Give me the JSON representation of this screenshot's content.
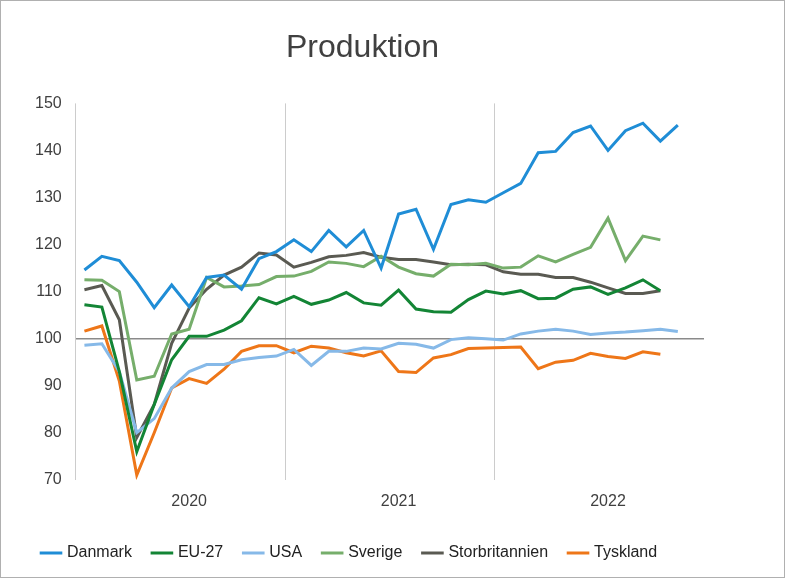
{
  "chart_data": {
    "type": "line",
    "title": "Produktion",
    "categories": [
      null,
      null,
      null,
      null,
      null,
      null,
      "2020",
      null,
      null,
      null,
      null,
      null,
      null,
      null,
      null,
      null,
      null,
      null,
      "2021",
      null,
      null,
      null,
      null,
      null,
      null,
      null,
      null,
      null,
      null,
      null,
      "2022",
      null,
      null,
      null,
      null,
      null
    ],
    "series": [
      {
        "name": "Danmark",
        "color": "#1f8dd6",
        "values": [
          114.6,
          117.5,
          116.6,
          112,
          106.6,
          111.4,
          106.8,
          113,
          113.5,
          110.5,
          117,
          118.5,
          121,
          118.5,
          123,
          119.5,
          123,
          115,
          126.5,
          127.5,
          119,
          128.5,
          129.5,
          129,
          131,
          133,
          139.5,
          139.8,
          143.8,
          145.2,
          140,
          144.2,
          145.8,
          142,
          145.4,
          null
        ]
      },
      {
        "name": "EU-27",
        "color": "#138535",
        "values": [
          107.2,
          106.7,
          93,
          76,
          86,
          95.5,
          100.5,
          100.5,
          101.8,
          103.8,
          108.7,
          107.4,
          109,
          107.3,
          108.2,
          109.8,
          107.6,
          107.1,
          110.3,
          106.3,
          105.7,
          105.6,
          108.3,
          110.1,
          109.5,
          110.2,
          108.5,
          108.6,
          110.5,
          111,
          109.4,
          110.8,
          112.5,
          110.2,
          null,
          null
        ]
      },
      {
        "name": "USA",
        "color": "#86b9e8",
        "values": [
          98.6,
          98.9,
          93,
          80,
          83,
          89.5,
          93,
          94.5,
          94.5,
          95.5,
          96,
          96.3,
          97.7,
          94.3,
          97.3,
          97.3,
          98,
          97.8,
          99,
          98.8,
          98,
          99.8,
          100.2,
          100,
          99.7,
          101,
          101.6,
          102,
          101.6,
          100.9,
          101.2,
          101.4,
          101.7,
          102,
          101.5,
          null
        ]
      },
      {
        "name": "Sverige",
        "color": "#76ae6b",
        "values": [
          112.5,
          112.4,
          110,
          91.2,
          92,
          101,
          102,
          113,
          111,
          111.2,
          111.5,
          113.2,
          113.3,
          114.3,
          116.3,
          116,
          115.3,
          117.5,
          115.2,
          113.8,
          113.3,
          115.8,
          115.7,
          116,
          115,
          115.2,
          117.6,
          116.3,
          117.9,
          119.4,
          125.6,
          116.6,
          121.8,
          121,
          null,
          null
        ]
      },
      {
        "name": "Storbritannien",
        "color": "#5a5a52",
        "values": [
          110.4,
          111.3,
          104,
          79,
          86,
          99,
          106.5,
          110.5,
          113.5,
          115.2,
          118.2,
          117.8,
          115.2,
          116.2,
          117.4,
          117.7,
          118.3,
          117.3,
          116.8,
          116.8,
          116.3,
          115.7,
          115.8,
          115.7,
          114.2,
          113.7,
          113.7,
          113,
          113,
          112,
          110.8,
          109.6,
          109.6,
          110.2,
          null,
          null
        ]
      },
      {
        "name": "Tyskland",
        "color": "#ee7618",
        "values": [
          101.6,
          102.7,
          91,
          71,
          80,
          89.5,
          91.5,
          90.5,
          93.5,
          97.3,
          98.5,
          98.5,
          97,
          98.4,
          98,
          97,
          96.3,
          97.4,
          93,
          92.8,
          95.9,
          96.6,
          97.9,
          98,
          98.1,
          98.2,
          93.6,
          95,
          95.4,
          96.9,
          96.2,
          95.8,
          97.2,
          96.7,
          null,
          null
        ]
      }
    ],
    "ylim": [
      70,
      150
    ],
    "yticks": [
      70,
      80,
      90,
      100,
      110,
      120,
      130,
      140,
      150
    ],
    "baseline": 100,
    "grid": "x",
    "legend": "bottom"
  }
}
